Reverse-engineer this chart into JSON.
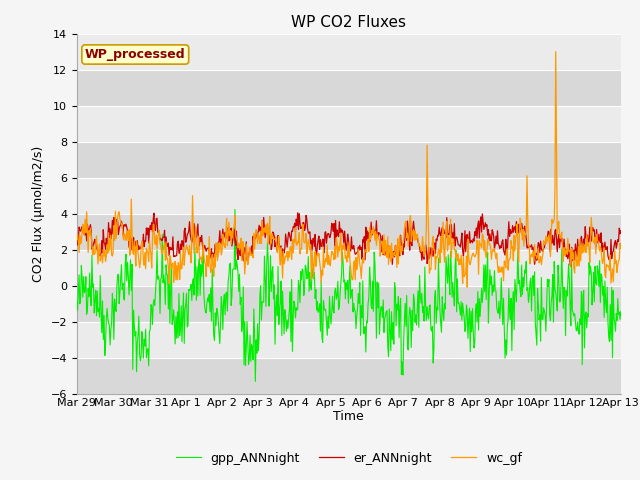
{
  "title": "WP CO2 Fluxes",
  "xlabel": "Time",
  "ylabel": "CO2 Flux (μmol/m2/s)",
  "ylim": [
    -6,
    14
  ],
  "yticks": [
    -6,
    -4,
    -2,
    0,
    2,
    4,
    6,
    8,
    10,
    12,
    14
  ],
  "n_days": 15,
  "n_per_day": 48,
  "tick_labels": [
    "Mar 29",
    "Mar 30",
    "Mar 31",
    "Apr 1",
    "Apr 2",
    "Apr 3",
    "Apr 4",
    "Apr 5",
    "Apr 6",
    "Apr 7",
    "Apr 8",
    "Apr 9",
    "Apr 10",
    "Apr 11",
    "Apr 12",
    "Apr 13"
  ],
  "line_colors": [
    "#00ee00",
    "#cc0000",
    "#ff9900"
  ],
  "line_labels": [
    "gpp_ANNnight",
    "er_ANNnight",
    "wc_gf"
  ],
  "annotation_text": "WP_processed",
  "annotation_color": "#8b0000",
  "annotation_bg": "#ffffcc",
  "annotation_border": "#cc9900",
  "plot_bg_light": "#ebebeb",
  "plot_bg_dark": "#d8d8d8",
  "fig_bg": "#f5f5f5",
  "title_fontsize": 11,
  "axis_label_fontsize": 9,
  "tick_fontsize": 8,
  "legend_fontsize": 9,
  "seed": 42
}
